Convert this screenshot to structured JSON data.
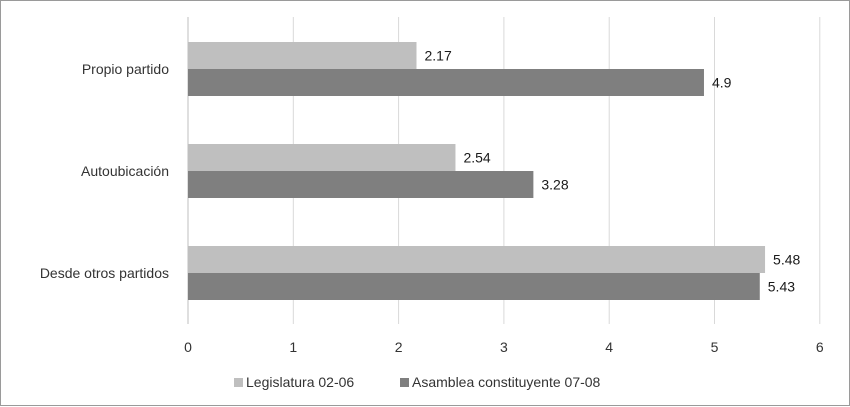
{
  "chart_data": {
    "type": "bar",
    "orientation": "horizontal",
    "title": "",
    "xlabel": "",
    "ylabel": "",
    "categories": [
      "Propio partido",
      "Autoubicación",
      "Desde otros partidos"
    ],
    "series": [
      {
        "name": "Legislatura 02-06",
        "color": "#bfbfbf",
        "values": [
          2.17,
          2.54,
          5.48
        ]
      },
      {
        "name": "Asamblea constituyente 07-08",
        "color": "#7f7f7f",
        "values": [
          4.9,
          3.28,
          5.43
        ]
      }
    ],
    "xlim": [
      0,
      6
    ],
    "xticks": [
      "0",
      "1",
      "2",
      "3",
      "4",
      "5",
      "6"
    ],
    "grid": "vertical",
    "legend": "bottom"
  }
}
